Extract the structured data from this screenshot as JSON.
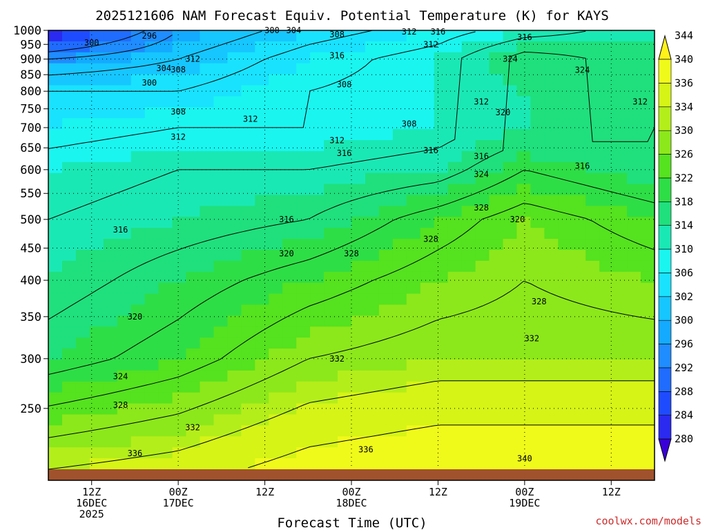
{
  "chart_data": {
    "type": "heatmap",
    "title": "2025121606 NAM Forecast Equiv. Potential Temperature (K) for KAYS",
    "xlabel": "Forecast Time (UTC)",
    "ylabel": "",
    "credit": "coolwx.com/models",
    "y_axis": {
      "scale": "log",
      "inverted": true,
      "range": [
        1000,
        200
      ],
      "ticks": [
        250,
        300,
        350,
        400,
        450,
        500,
        550,
        600,
        650,
        700,
        750,
        800,
        850,
        900,
        950,
        1000
      ],
      "grid": "dotted"
    },
    "x_axis": {
      "range_hours": [
        6,
        90
      ],
      "ticks": [
        {
          "hour": 12,
          "line1": "12Z",
          "line2": "16DEC",
          "line3": "2025"
        },
        {
          "hour": 24,
          "line1": "00Z",
          "line2": "17DEC",
          "line3": ""
        },
        {
          "hour": 36,
          "line1": "12Z",
          "line2": "",
          "line3": ""
        },
        {
          "hour": 48,
          "line1": "00Z",
          "line2": "18DEC",
          "line3": ""
        },
        {
          "hour": 60,
          "line1": "12Z",
          "line2": "",
          "line3": ""
        },
        {
          "hour": 72,
          "line1": "00Z",
          "line2": "19DEC",
          "line3": ""
        },
        {
          "hour": 84,
          "line1": "12Z",
          "line2": "",
          "line3": ""
        }
      ],
      "grid": "dotted"
    },
    "colorbar": {
      "units": "K",
      "levels": [
        280,
        284,
        288,
        292,
        296,
        300,
        302,
        306,
        310,
        314,
        318,
        322,
        326,
        330,
        334,
        336,
        340,
        344
      ],
      "colors": [
        "#3a00d8",
        "#2a2af0",
        "#1f4bff",
        "#1f6cff",
        "#1f8cff",
        "#13aaff",
        "#16c6ff",
        "#19e2ff",
        "#1af5f0",
        "#1ae8b4",
        "#1fe07c",
        "#2ede46",
        "#55e21f",
        "#8ce81a",
        "#b4ee1a",
        "#d6f416",
        "#f0fa1a",
        "#fff21a"
      ]
    },
    "ground_color": "#a0522d",
    "field_anchors": {
      "note": "equivalent potential temperature (K) at selected pressure levels for six forecast times",
      "hours": [
        6,
        24,
        42,
        60,
        72,
        90
      ],
      "levels": [
        1000,
        900,
        800,
        700,
        600,
        500,
        400,
        300,
        200
      ],
      "theta_e": [
        [
          284,
          300,
          306,
          310,
          314,
          318
        ],
        [
          300,
          304,
          310,
          314,
          322,
          318
        ],
        [
          308,
          308,
          312,
          314,
          318,
          318
        ],
        [
          310,
          312,
          312,
          314,
          318,
          320
        ],
        [
          314,
          316,
          316,
          318,
          324,
          320
        ],
        [
          316,
          318,
          320,
          326,
          330,
          326
        ],
        [
          318,
          322,
          326,
          330,
          332,
          330
        ],
        [
          322,
          326,
          332,
          334,
          334,
          334
        ],
        [
          336,
          338,
          342,
          344,
          344,
          344
        ]
      ]
    },
    "contour_labels": [
      {
        "text": "336",
        "hour": 18,
        "p": 212
      },
      {
        "text": "336",
        "hour": 50,
        "p": 215
      },
      {
        "text": "340",
        "hour": 72,
        "p": 208
      },
      {
        "text": "332",
        "hour": 26,
        "p": 233
      },
      {
        "text": "328",
        "hour": 16,
        "p": 253
      },
      {
        "text": "324",
        "hour": 16,
        "p": 281
      },
      {
        "text": "332",
        "hour": 46,
        "p": 300
      },
      {
        "text": "332",
        "hour": 73,
        "p": 323
      },
      {
        "text": "320",
        "hour": 18,
        "p": 350
      },
      {
        "text": "328",
        "hour": 74,
        "p": 370
      },
      {
        "text": "320",
        "hour": 39,
        "p": 441
      },
      {
        "text": "328",
        "hour": 48,
        "p": 441
      },
      {
        "text": "328",
        "hour": 59,
        "p": 465
      },
      {
        "text": "316",
        "hour": 16,
        "p": 481
      },
      {
        "text": "316",
        "hour": 39,
        "p": 500
      },
      {
        "text": "320",
        "hour": 71,
        "p": 500
      },
      {
        "text": "328",
        "hour": 66,
        "p": 522
      },
      {
        "text": "324",
        "hour": 66,
        "p": 590
      },
      {
        "text": "316",
        "hour": 47,
        "p": 637
      },
      {
        "text": "316",
        "hour": 59,
        "p": 644
      },
      {
        "text": "316",
        "hour": 66,
        "p": 630
      },
      {
        "text": "316",
        "hour": 80,
        "p": 608
      },
      {
        "text": "312",
        "hour": 24,
        "p": 676
      },
      {
        "text": "312",
        "hour": 46,
        "p": 668
      },
      {
        "text": "308",
        "hour": 56,
        "p": 710
      },
      {
        "text": "312",
        "hour": 34,
        "p": 722
      },
      {
        "text": "308",
        "hour": 24,
        "p": 742
      },
      {
        "text": "320",
        "hour": 69,
        "p": 740
      },
      {
        "text": "312",
        "hour": 66,
        "p": 770
      },
      {
        "text": "312",
        "hour": 88,
        "p": 770
      },
      {
        "text": "300",
        "hour": 20,
        "p": 825
      },
      {
        "text": "308",
        "hour": 47,
        "p": 820
      },
      {
        "text": "304",
        "hour": 22,
        "p": 870
      },
      {
        "text": "308",
        "hour": 24,
        "p": 866
      },
      {
        "text": "324",
        "hour": 80,
        "p": 865
      },
      {
        "text": "312",
        "hour": 26,
        "p": 900
      },
      {
        "text": "324",
        "hour": 70,
        "p": 900
      },
      {
        "text": "316",
        "hour": 46,
        "p": 912
      },
      {
        "text": "300",
        "hour": 12,
        "p": 955
      },
      {
        "text": "312",
        "hour": 59,
        "p": 950
      },
      {
        "text": "316",
        "hour": 72,
        "p": 975
      },
      {
        "text": "296",
        "hour": 20,
        "p": 980
      },
      {
        "text": "308",
        "hour": 46,
        "p": 985
      },
      {
        "text": "300",
        "hour": 37,
        "p": 1000
      },
      {
        "text": "304",
        "hour": 40,
        "p": 1000
      },
      {
        "text": "312",
        "hour": 56,
        "p": 995
      },
      {
        "text": "316",
        "hour": 60,
        "p": 995
      }
    ]
  }
}
